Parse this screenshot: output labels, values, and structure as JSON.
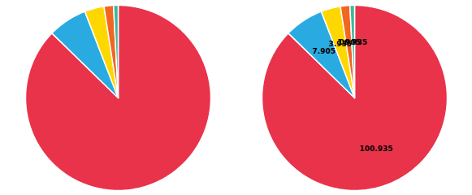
{
  "chart_data": [
    {
      "type": "pie",
      "values": [
        100.935,
        7.905,
        3.935,
        1.905,
        0.935
      ],
      "colors": [
        "#E8334A",
        "#29ABE2",
        "#FFD700",
        "#F26522",
        "#3CB89C"
      ]
    },
    {
      "type": "pie",
      "values": [
        100.935,
        7.905,
        3.935,
        1.905,
        0.935
      ],
      "colors": [
        "#E8334A",
        "#29ABE2",
        "#FFD700",
        "#F26522",
        "#3CB89C"
      ],
      "data_labels": true,
      "value_labels": [
        "100.935",
        "7.905",
        "3.935",
        "1.905",
        "00.935"
      ]
    }
  ]
}
